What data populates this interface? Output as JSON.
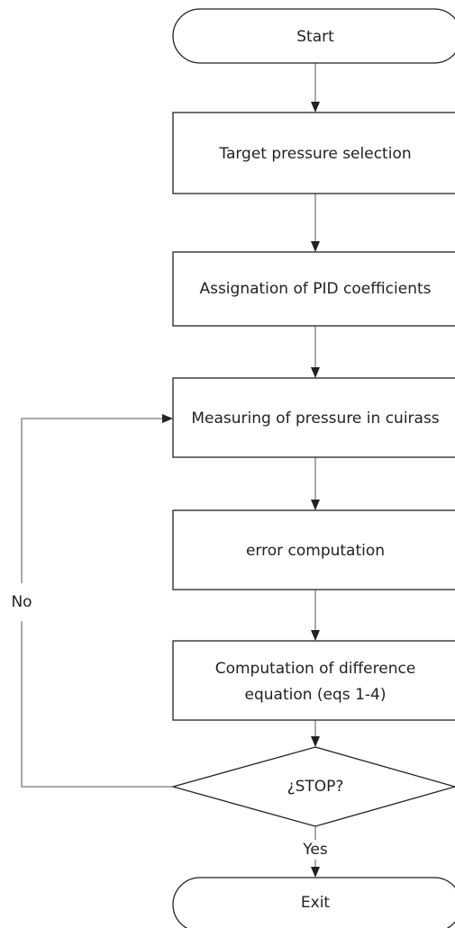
{
  "nodes": [
    {
      "label": "Start"
    },
    {
      "label": "Target pressure selection"
    },
    {
      "label": "Assignation of PID coefficients"
    },
    {
      "label": "Measuring of pressure in cuirass"
    },
    {
      "label": "error computation"
    },
    {
      "lines": [
        "Computation of difference",
        "equation (eqs 1-4)"
      ]
    },
    {
      "label": "¿STOP?"
    },
    {
      "label": "Exit"
    }
  ],
  "edges": [
    {
      "label": "No"
    },
    {
      "label": "Yes"
    }
  ]
}
